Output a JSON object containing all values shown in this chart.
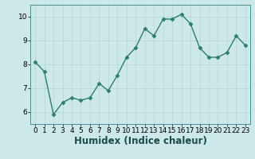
{
  "x": [
    0,
    1,
    2,
    3,
    4,
    5,
    6,
    7,
    8,
    9,
    10,
    11,
    12,
    13,
    14,
    15,
    16,
    17,
    18,
    19,
    20,
    21,
    22,
    23
  ],
  "y": [
    8.1,
    7.7,
    5.9,
    6.4,
    6.6,
    6.5,
    6.6,
    7.2,
    6.9,
    7.55,
    8.3,
    8.7,
    9.5,
    9.2,
    9.9,
    9.9,
    10.1,
    9.7,
    8.7,
    8.3,
    8.3,
    8.5,
    9.2,
    8.8
  ],
  "line_color": "#2e7d6e",
  "marker": "D",
  "marker_size": 2.5,
  "bg_color": "#cce8e8",
  "grid_color": "#b8d8d8",
  "xlabel": "Humidex (Indice chaleur)",
  "ylabel": "",
  "xlim": [
    -0.5,
    23.5
  ],
  "ylim": [
    5.5,
    10.5
  ],
  "yticks": [
    6,
    7,
    8,
    9,
    10
  ],
  "xticks": [
    0,
    1,
    2,
    3,
    4,
    5,
    6,
    7,
    8,
    9,
    10,
    11,
    12,
    13,
    14,
    15,
    16,
    17,
    18,
    19,
    20,
    21,
    22,
    23
  ],
  "tick_labelsize": 6.5,
  "xlabel_fontsize": 8.5,
  "linewidth": 1.0,
  "spine_color": "#4a9090"
}
